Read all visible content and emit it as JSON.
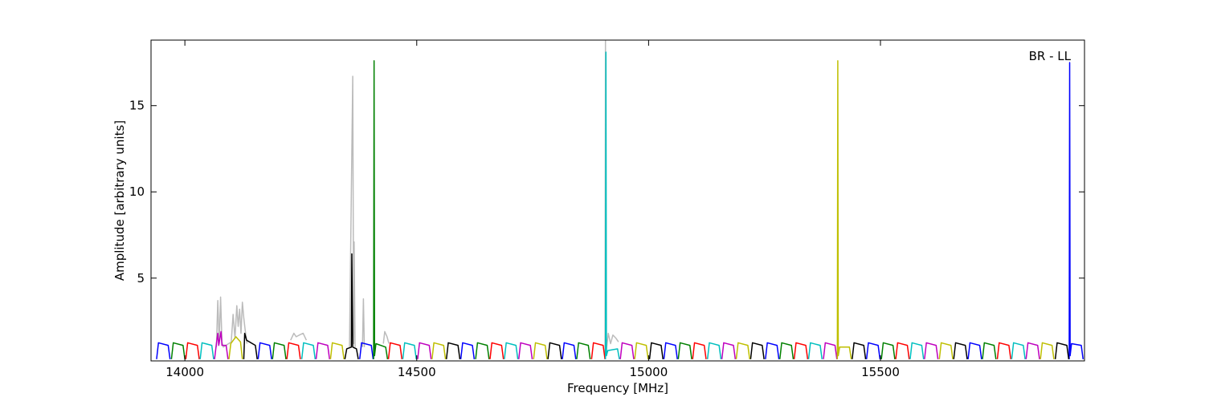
{
  "chart_data": {
    "type": "line",
    "xlabel": "Frequency [MHz]",
    "ylabel": "Amplitude [arbitrary units]",
    "annotation": "BR - LL",
    "xlim": [
      13927,
      15940
    ],
    "ylim": [
      0.2,
      18.8
    ],
    "xticks": [
      14000,
      14500,
      15000,
      15500
    ],
    "yticks": [
      5,
      10,
      15
    ],
    "series": [
      {
        "color": "#bbbbbb",
        "x": [
          14068,
          14071,
          14074,
          14077,
          14080,
          14083,
          14100,
          14104,
          14108,
          14112,
          14115,
          14118,
          14121,
          14124,
          14127,
          14130,
          14134,
          null,
          14228,
          14235,
          14240,
          14247,
          14255,
          14262,
          null,
          14355,
          14362,
          14364,
          14365,
          14367,
          null,
          14383,
          14385,
          14387,
          null,
          14428,
          14431,
          14436,
          14440,
          null,
          14906,
          14907,
          14908,
          14913,
          14918,
          14923,
          14930,
          14935
        ],
        "values": [
          1.0,
          3.7,
          1.2,
          3.9,
          1.3,
          1.0,
          1.3,
          2.9,
          1.5,
          3.4,
          2.2,
          3.2,
          1.8,
          3.6,
          2.7,
          2.0,
          1.2,
          null,
          1.4,
          1.8,
          1.6,
          1.7,
          1.8,
          1.4,
          null,
          1.0,
          16.7,
          1.2,
          7.1,
          1.0,
          null,
          1.0,
          3.8,
          1.0,
          null,
          1.2,
          1.9,
          1.6,
          1.2,
          null,
          0.5,
          18.8,
          0.6,
          1.8,
          1.2,
          1.7,
          1.5,
          1.3
        ]
      },
      {
        "color": "#0000ff",
        "x": [
          13939,
          13943,
          13964,
          13968,
          null,
          14158,
          14162,
          14183,
          14187,
          null,
          14377,
          14381,
          14402,
          14406,
          null,
          14595,
          14599,
          14620,
          14624,
          null,
          14814,
          14818,
          14839,
          14843,
          null,
          15033,
          15037,
          15058,
          15062,
          null,
          15252,
          15256,
          15277,
          15281,
          null,
          15470,
          15474,
          15495,
          15499,
          null,
          15689,
          15693,
          15714,
          15718,
          null,
          15907,
          15908,
          15909,
          15912,
          15933,
          15937
        ],
        "values": [
          0.3,
          1.25,
          1.1,
          0.3,
          null,
          0.3,
          1.25,
          1.1,
          0.3,
          null,
          0.3,
          1.25,
          1.1,
          0.3,
          null,
          0.3,
          1.25,
          1.1,
          0.3,
          null,
          0.3,
          1.25,
          1.1,
          0.3,
          null,
          0.3,
          1.25,
          1.1,
          0.3,
          null,
          0.3,
          1.25,
          1.1,
          0.3,
          null,
          0.3,
          1.25,
          1.1,
          0.3,
          null,
          0.3,
          1.25,
          1.1,
          0.3,
          null,
          0.3,
          17.5,
          0.5,
          1.2,
          1.1,
          0.3
        ]
      },
      {
        "color": "#008000",
        "x": [
          13971,
          13975,
          13996,
          14000,
          null,
          14189,
          14193,
          14214,
          14218,
          null,
          14407,
          14408,
          14409,
          14412,
          14433,
          14437,
          null,
          14627,
          14631,
          14652,
          14656,
          null,
          14845,
          14849,
          14870,
          14874,
          null,
          15064,
          15068,
          15089,
          15093,
          null,
          15283,
          15287,
          15308,
          15312,
          null,
          15502,
          15506,
          15527,
          15531,
          null,
          15720,
          15724,
          15745,
          15749
        ],
        "values": [
          0.3,
          1.25,
          1.1,
          0.3,
          null,
          0.3,
          1.25,
          1.1,
          0.3,
          null,
          0.3,
          17.6,
          0.5,
          1.2,
          1.0,
          0.3,
          null,
          0.3,
          1.25,
          1.1,
          0.3,
          null,
          0.3,
          1.25,
          1.1,
          0.3,
          null,
          0.3,
          1.25,
          1.1,
          0.3,
          null,
          0.3,
          1.25,
          1.1,
          0.3,
          null,
          0.3,
          1.25,
          1.1,
          0.3,
          null,
          0.3,
          1.25,
          1.1,
          0.3
        ]
      },
      {
        "color": "#ff0000",
        "x": [
          14002,
          14006,
          14027,
          14031,
          null,
          14220,
          14224,
          14245,
          14249,
          null,
          14439,
          14443,
          14464,
          14468,
          null,
          14658,
          14662,
          14683,
          14687,
          null,
          14877,
          14881,
          14902,
          14906,
          null,
          15095,
          15099,
          15120,
          15124,
          null,
          15314,
          15318,
          15339,
          15343,
          null,
          15533,
          15537,
          15558,
          15562,
          null,
          15752,
          15756,
          15777,
          15781
        ],
        "values": [
          0.3,
          1.25,
          1.1,
          0.3,
          null,
          0.3,
          1.25,
          1.1,
          0.3,
          null,
          0.3,
          1.25,
          1.1,
          0.3,
          null,
          0.3,
          1.25,
          1.1,
          0.3,
          null,
          0.3,
          1.25,
          1.1,
          0.3,
          null,
          0.3,
          1.25,
          1.1,
          0.3,
          null,
          0.3,
          1.25,
          1.1,
          0.3,
          null,
          0.3,
          1.25,
          1.1,
          0.3,
          null,
          0.3,
          1.25,
          1.1,
          0.3
        ]
      },
      {
        "color": "#00bfbf",
        "x": [
          14033,
          14037,
          14058,
          14062,
          null,
          14252,
          14256,
          14277,
          14281,
          null,
          14470,
          14474,
          14495,
          14499,
          null,
          14689,
          14693,
          14714,
          14718,
          null,
          14907,
          14908,
          14909,
          14912,
          14933,
          14937,
          null,
          15127,
          15131,
          15152,
          15156,
          null,
          15345,
          15349,
          15370,
          15374,
          null,
          15564,
          15568,
          15589,
          15593,
          null,
          15783,
          15787,
          15808,
          15812
        ],
        "values": [
          0.3,
          1.25,
          1.1,
          0.3,
          null,
          0.3,
          1.25,
          1.1,
          0.3,
          null,
          0.3,
          1.25,
          1.1,
          0.3,
          null,
          0.3,
          1.25,
          1.1,
          0.3,
          null,
          0.3,
          18.1,
          0.5,
          0.8,
          0.9,
          0.3,
          null,
          0.3,
          1.25,
          1.1,
          0.3,
          null,
          0.3,
          1.25,
          1.1,
          0.3,
          null,
          0.3,
          1.25,
          1.1,
          0.3,
          null,
          0.3,
          1.25,
          1.1,
          0.3
        ]
      },
      {
        "color": "#bf00bf",
        "x": [
          14064,
          14068,
          14071,
          14073,
          14078,
          14080,
          14089,
          14093,
          null,
          14283,
          14287,
          14308,
          14312,
          null,
          14502,
          14506,
          14527,
          14531,
          null,
          14720,
          14724,
          14745,
          14749,
          null,
          14939,
          14943,
          14964,
          14968,
          null,
          15158,
          15162,
          15183,
          15187,
          null,
          15377,
          15381,
          15402,
          15406,
          null,
          15595,
          15599,
          15620,
          15624,
          null,
          15814,
          15818,
          15839,
          15843
        ],
        "values": [
          0.3,
          1.2,
          1.8,
          1.1,
          1.9,
          1.1,
          1.1,
          0.3,
          null,
          0.3,
          1.25,
          1.1,
          0.3,
          null,
          0.3,
          1.25,
          1.1,
          0.3,
          null,
          0.3,
          1.25,
          1.1,
          0.3,
          null,
          0.3,
          1.25,
          1.1,
          0.3,
          null,
          0.3,
          1.25,
          1.1,
          0.3,
          null,
          0.3,
          1.25,
          1.1,
          0.3,
          null,
          0.3,
          1.25,
          1.1,
          0.3,
          null,
          0.3,
          1.25,
          1.1,
          0.3
        ]
      },
      {
        "color": "#bfbf00",
        "x": [
          14095,
          14099,
          14110,
          14120,
          14124,
          null,
          14314,
          14318,
          14339,
          14343,
          null,
          14533,
          14537,
          14558,
          14562,
          null,
          14752,
          14756,
          14777,
          14781,
          null,
          14970,
          14974,
          14995,
          14999,
          null,
          15189,
          15193,
          15214,
          15218,
          null,
          15407,
          15408,
          15409,
          15412,
          15433,
          15437,
          null,
          15627,
          15631,
          15652,
          15656,
          null,
          15845,
          15849,
          15870,
          15874
        ],
        "values": [
          0.3,
          1.2,
          1.6,
          1.3,
          0.3,
          null,
          0.3,
          1.25,
          1.1,
          0.3,
          null,
          0.3,
          1.25,
          1.1,
          0.3,
          null,
          0.3,
          1.25,
          1.1,
          0.3,
          null,
          0.3,
          1.25,
          1.1,
          0.3,
          null,
          0.3,
          1.25,
          1.1,
          0.3,
          null,
          0.3,
          17.6,
          0.5,
          1.0,
          1.0,
          0.3,
          null,
          0.3,
          1.25,
          1.1,
          0.3,
          null,
          0.3,
          1.25,
          1.1,
          0.3
        ]
      },
      {
        "color": "#000000",
        "x": [
          14127,
          14129,
          14133,
          14152,
          14156,
          null,
          14345,
          14349,
          14359,
          14360,
          14362,
          14370,
          14374,
          null,
          14564,
          14568,
          14589,
          14593,
          null,
          14783,
          14787,
          14808,
          14812,
          null,
          15002,
          15006,
          15027,
          15031,
          null,
          15220,
          15224,
          15245,
          15249,
          null,
          15439,
          15443,
          15464,
          15468,
          null,
          15658,
          15662,
          15683,
          15687,
          null,
          15877,
          15881,
          15902,
          15906
        ],
        "values": [
          0.3,
          1.8,
          1.4,
          1.1,
          0.3,
          null,
          0.3,
          0.9,
          1.0,
          6.4,
          1.0,
          0.9,
          0.3,
          null,
          0.3,
          1.25,
          1.1,
          0.3,
          null,
          0.3,
          1.25,
          1.1,
          0.3,
          null,
          0.3,
          1.25,
          1.1,
          0.3,
          null,
          0.3,
          1.25,
          1.1,
          0.3,
          null,
          0.3,
          1.25,
          1.1,
          0.3,
          null,
          0.3,
          1.25,
          1.1,
          0.3,
          null,
          0.3,
          1.25,
          1.1,
          0.3
        ]
      }
    ]
  }
}
